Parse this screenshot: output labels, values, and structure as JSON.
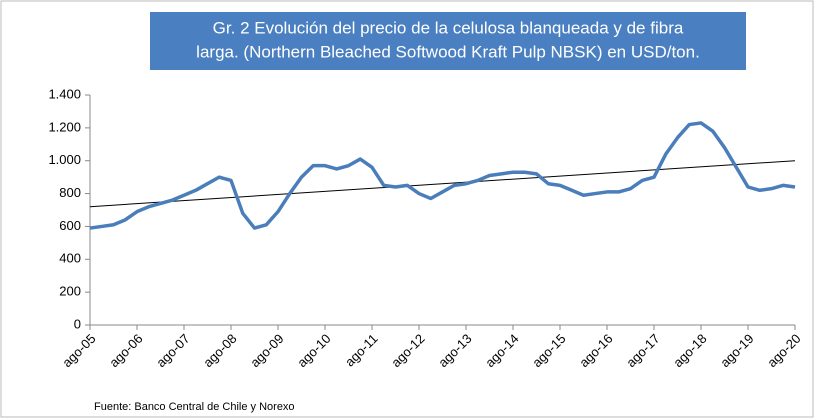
{
  "chart_data": {
    "type": "line",
    "title": [
      "Gr. 2  Evolución del precio de la celulosa blanqueada y de fibra",
      "larga. (Northern  Bleached Softwood  Kraft Pulp NBSK)  en USD/ton."
    ],
    "source": "Fuente: Banco Central de Chile y Norexo",
    "categories": [
      "ago-05",
      null,
      null,
      null,
      "ago-06",
      null,
      null,
      null,
      "ago-07",
      null,
      null,
      null,
      "ago-08",
      null,
      null,
      null,
      "ago-09",
      null,
      null,
      null,
      "ago-10",
      null,
      null,
      null,
      "ago-11",
      null,
      null,
      null,
      "ago-12",
      null,
      null,
      null,
      "ago-13",
      null,
      null,
      null,
      "ago-14",
      null,
      null,
      null,
      "ago-15",
      null,
      null,
      null,
      "ago-16",
      null,
      null,
      null,
      "ago-17",
      null,
      null,
      null,
      "ago-18",
      null,
      null,
      null,
      "ago-19",
      null,
      null,
      null,
      "ago-20"
    ],
    "series": [
      {
        "color": "#4a7ebb",
        "values": [
          590,
          600,
          610,
          640,
          690,
          720,
          740,
          760,
          790,
          820,
          860,
          900,
          880,
          680,
          590,
          610,
          690,
          800,
          900,
          970,
          970,
          950,
          970,
          1010,
          960,
          850,
          840,
          850,
          800,
          770,
          810,
          850,
          860,
          880,
          910,
          920,
          930,
          930,
          920,
          860,
          850,
          820,
          790,
          800,
          810,
          810,
          830,
          880,
          900,
          1040,
          1140,
          1220,
          1230,
          1180,
          1080,
          960,
          840,
          820,
          830,
          850,
          840
        ]
      }
    ],
    "trendline": {
      "color": "#000000",
      "values": [
        720,
        1000
      ]
    },
    "ylim": [
      0,
      1400
    ],
    "yticks": [
      0,
      200,
      400,
      600,
      800,
      {
        "value": 1000,
        "label": "1.000"
      },
      {
        "value": 1200,
        "label": "1.200"
      },
      {
        "value": 1400,
        "label": "1.400"
      }
    ],
    "title_color": "#4a7fc1"
  }
}
